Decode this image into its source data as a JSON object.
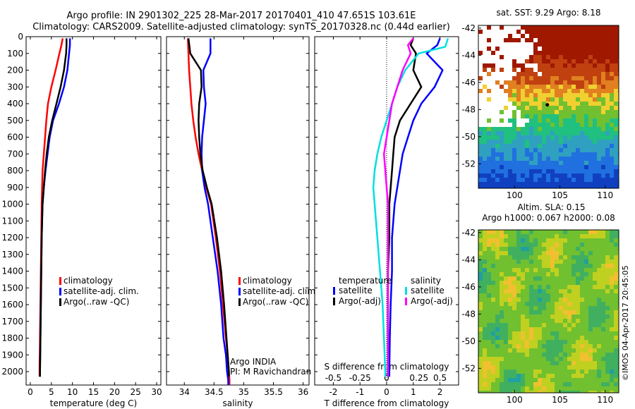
{
  "header": {
    "line1": "Argo profile: IN 2901302_225 28-Mar-2017 20170401_410 47.651S 103.61E",
    "line2": "Climatology: CARS2009. Satellite-adjusted climatology: synTS_20170328.nc (0.44d earlier)"
  },
  "colors": {
    "climatology": "#ff0000",
    "satellite": "#0000ff",
    "argo": "#000000",
    "salinity_sat": "#00e0e0",
    "salinity_argo": "#ff00ff"
  },
  "chart_data": [
    {
      "type": "line",
      "name": "temperature",
      "xlabel": "temperature (deg C)",
      "ylabel": "",
      "xlim": [
        -1,
        31
      ],
      "ylim": [
        2080,
        0
      ],
      "xticks": [
        0,
        5,
        10,
        15,
        20,
        25,
        30
      ],
      "xtick_labels": [
        "0",
        "5",
        "10",
        "15",
        "20",
        "25",
        "30"
      ],
      "yticks": [
        0,
        100,
        200,
        300,
        400,
        500,
        600,
        700,
        800,
        900,
        1000,
        1100,
        1200,
        1300,
        1400,
        1500,
        1600,
        1700,
        1800,
        1900,
        2000
      ],
      "ytick_labels": [
        "0",
        "100",
        "200",
        "300",
        "400",
        "500",
        "600",
        "700",
        "800",
        "900",
        "1000",
        "1100",
        "1200",
        "1300",
        "1400",
        "1500",
        "1600",
        "1700",
        "1800",
        "1900",
        "2000"
      ],
      "legend": [
        "climatology",
        "satellite-adj. clim.",
        "Argo(..raw -QC)"
      ],
      "series": [
        {
          "name": "climatology",
          "color": "climatology",
          "x": [
            7.7,
            7.4,
            6.9,
            6.0,
            5.0,
            4.2,
            3.8,
            3.5,
            3.2,
            2.9,
            2.8,
            2.7,
            2.6,
            2.5,
            2.4,
            2.3,
            2.25,
            2.2,
            2.2,
            2.2
          ],
          "y": [
            10,
            50,
            100,
            200,
            300,
            400,
            500,
            600,
            700,
            800,
            900,
            1000,
            1200,
            1400,
            1600,
            1800,
            1900,
            1950,
            2000,
            2030
          ]
        },
        {
          "name": "satellite-adj. clim.",
          "color": "satellite",
          "x": [
            9.4,
            9.4,
            9.2,
            8.8,
            8.0,
            6.8,
            5.4,
            4.6,
            4.1,
            3.6,
            3.2,
            2.9,
            2.7,
            2.6,
            2.5,
            2.4,
            2.35,
            2.3,
            2.3
          ],
          "y": [
            10,
            50,
            100,
            200,
            300,
            400,
            500,
            600,
            700,
            800,
            900,
            1000,
            1200,
            1400,
            1600,
            1800,
            1900,
            2000,
            2030
          ]
        },
        {
          "name": "Argo(..raw -QC)",
          "color": "argo",
          "x": [
            8.6,
            8.6,
            8.5,
            8.0,
            7.2,
            6.2,
            5.2,
            4.4,
            3.9,
            3.5,
            3.2,
            2.9,
            2.7,
            2.6,
            2.5,
            2.4,
            2.35,
            2.3,
            2.3
          ],
          "y": [
            10,
            50,
            100,
            200,
            300,
            400,
            500,
            600,
            700,
            800,
            900,
            1000,
            1200,
            1400,
            1600,
            1800,
            1900,
            2000,
            2030
          ]
        }
      ]
    },
    {
      "type": "line",
      "name": "salinity",
      "xlabel": "salinity",
      "ylabel": "",
      "xlim": [
        33.7,
        36.1
      ],
      "ylim": [
        2080,
        0
      ],
      "xticks": [
        34,
        34.5,
        35,
        35.5,
        36
      ],
      "xtick_labels": [
        "34",
        "34.5",
        "35",
        "35.5",
        "36"
      ],
      "legend": [
        "climatology",
        "satellite-adj. clim.",
        "Argo(..raw -QC)"
      ],
      "annotation": [
        "Argo INDIA",
        "PI: M Ravichandran"
      ],
      "series": [
        {
          "name": "climatology",
          "color": "climatology",
          "x": [
            34.06,
            34.07,
            34.08,
            34.1,
            34.12,
            34.15,
            34.19,
            34.24,
            34.3,
            34.37,
            34.45,
            34.53,
            34.6,
            34.65,
            34.7,
            34.73,
            34.75,
            34.76,
            34.76
          ],
          "y": [
            10,
            100,
            200,
            300,
            400,
            500,
            600,
            700,
            800,
            900,
            1000,
            1200,
            1400,
            1600,
            1800,
            1900,
            2000,
            2050,
            2080
          ]
        },
        {
          "name": "satellite-adj. clim.",
          "color": "satellite",
          "x": [
            34.44,
            34.44,
            34.32,
            34.33,
            34.36,
            34.33,
            34.3,
            34.29,
            34.3,
            34.34,
            34.4,
            34.48,
            34.56,
            34.62,
            34.66,
            34.7,
            34.72,
            34.74,
            34.74
          ],
          "y": [
            10,
            100,
            200,
            300,
            400,
            500,
            600,
            700,
            800,
            900,
            1000,
            1200,
            1400,
            1600,
            1800,
            1900,
            2000,
            2050,
            2080
          ]
        },
        {
          "name": "Argo(..raw -QC)",
          "color": "argo",
          "x": [
            34.07,
            34.1,
            34.28,
            34.29,
            34.25,
            34.24,
            34.25,
            34.27,
            34.31,
            34.38,
            34.46,
            34.55,
            34.62,
            34.67,
            34.71,
            34.73,
            34.75,
            34.75
          ],
          "y": [
            10,
            100,
            200,
            300,
            400,
            500,
            600,
            700,
            800,
            900,
            1000,
            1200,
            1400,
            1600,
            1800,
            1900,
            2000,
            2030
          ]
        }
      ]
    },
    {
      "type": "line",
      "name": "difference",
      "xlabel": "T difference from climatology",
      "top_axis_label": "S difference from climatology",
      "xlim": [
        -2.7,
        2.7
      ],
      "ylim": [
        2080,
        0
      ],
      "xticks": [
        -2,
        -1,
        0,
        1,
        2
      ],
      "xtick_labels": [
        "-2",
        "-1",
        "0",
        "1",
        "2"
      ],
      "s_tick_labels": [
        "-0.5",
        "-0.25",
        "0",
        "0.25",
        "0.5"
      ],
      "legend_titles": [
        "temperature",
        "salinity"
      ],
      "legend": [
        "satellite",
        "Argo(-adj)",
        "satellite",
        "Argo(-adj)"
      ],
      "series": [
        {
          "name": "T satellite",
          "color": "satellite",
          "x": [
            2.0,
            1.9,
            1.5,
            2.1,
            1.8,
            1.3,
            1.0,
            0.8,
            0.6,
            0.5,
            0.4,
            0.3,
            0.2,
            0.2,
            0.15,
            0.12,
            0.1,
            0.1
          ],
          "y": [
            10,
            50,
            100,
            200,
            300,
            400,
            500,
            600,
            700,
            800,
            900,
            1000,
            1200,
            1400,
            1600,
            1800,
            2000,
            2030
          ]
        },
        {
          "name": "T Argo(-adj)",
          "color": "argo",
          "x": [
            1.0,
            0.9,
            1.1,
            1.0,
            1.3,
            0.9,
            0.5,
            0.3,
            0.25,
            0.2,
            0.15,
            0.1,
            0.1,
            0.05,
            0.05,
            0.05,
            0.05,
            0.05
          ],
          "y": [
            10,
            50,
            100,
            200,
            300,
            400,
            500,
            600,
            700,
            800,
            900,
            1000,
            1200,
            1400,
            1600,
            1800,
            2000,
            2030
          ]
        },
        {
          "name": "S satellite",
          "color": "salinity_sat",
          "x": [
            2.3,
            2.2,
            1.2,
            0.7,
            0.4,
            0.2,
            0.0,
            -0.2,
            -0.35,
            -0.45,
            -0.5,
            -0.45,
            -0.35,
            -0.25,
            -0.15,
            -0.1,
            -0.05,
            -0.05
          ],
          "y": [
            10,
            60,
            100,
            200,
            300,
            400,
            500,
            600,
            700,
            800,
            900,
            1000,
            1200,
            1400,
            1600,
            1800,
            2000,
            2030
          ]
        },
        {
          "name": "S Argo(-adj)",
          "color": "salinity_argo",
          "x": [
            1.0,
            0.8,
            0.9,
            0.6,
            0.4,
            0.2,
            0.1,
            0.0,
            -0.1,
            -0.05,
            0.0,
            0.05,
            0.05,
            0.05,
            0.05,
            0.05,
            0.05,
            0.05
          ],
          "y": [
            10,
            50,
            100,
            200,
            300,
            400,
            500,
            600,
            700,
            800,
            900,
            1000,
            1200,
            1400,
            1600,
            1800,
            2000,
            2030
          ]
        }
      ]
    },
    {
      "type": "heatmap",
      "name": "sst_map",
      "title": "sat. SST: 9.29 Argo: 8.18",
      "xlim": [
        96,
        111.5
      ],
      "ylim": [
        -53.8,
        -41.8
      ],
      "xticks": [
        100,
        105,
        110
      ],
      "xtick_labels": [
        "100",
        "105",
        "110"
      ],
      "yticks": [
        -42,
        -44,
        -46,
        -48,
        -50,
        -52
      ],
      "ytick_labels": [
        "-42",
        "-44",
        "-46",
        "-48",
        "-50",
        "-52"
      ],
      "argo_position": [
        103.61,
        -47.651
      ]
    },
    {
      "type": "heatmap",
      "name": "sla_map",
      "title": [
        "Altim. SLA: 0.15",
        "Argo h1000: 0.067 h2000: 0.08"
      ],
      "xlim": [
        96,
        111.5
      ],
      "ylim": [
        -53.8,
        -41.8
      ],
      "xticks": [
        100,
        105,
        110
      ],
      "xtick_labels": [
        "100",
        "105",
        "110"
      ],
      "yticks": [
        -42,
        -44,
        -46,
        -48,
        -50,
        -52
      ],
      "ytick_labels": [
        "-42",
        "-44",
        "-46",
        "-48",
        "-50",
        "-52"
      ]
    }
  ],
  "footer": {
    "credit": "©IMOS 04-Apr-2017 20:45:05"
  }
}
